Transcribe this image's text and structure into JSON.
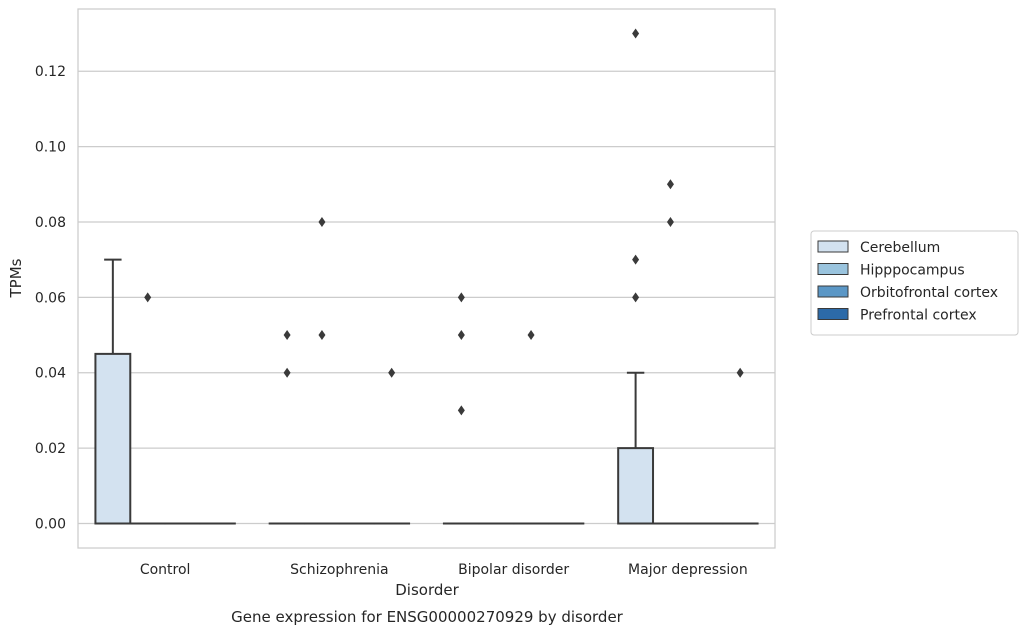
{
  "chart_data": {
    "type": "box",
    "title": "",
    "caption": "Gene expression for ENSG00000270929 by disorder",
    "xlabel": "Disorder",
    "ylabel": "TPMs",
    "ylim": [
      -0.0065,
      0.1365
    ],
    "yticks": [
      "0.00",
      "0.02",
      "0.04",
      "0.06",
      "0.08",
      "0.10",
      "0.12"
    ],
    "ytick_values": [
      0,
      0.02,
      0.04,
      0.06,
      0.08,
      0.1,
      0.12
    ],
    "grid": "horizontal",
    "legend_position": "outside-right",
    "categories": [
      "Control",
      "Schizophrenia",
      "Bipolar disorder",
      "Major depression"
    ],
    "series": [
      {
        "name": "Cerebellum",
        "color": "#d3e2f0",
        "boxes": [
          {
            "q1": 0,
            "median": 0,
            "q3": 0.045,
            "whisker_low": 0,
            "whisker_high": 0.07,
            "outliers": []
          },
          {
            "q1": 0,
            "median": 0,
            "q3": 0,
            "whisker_low": 0,
            "whisker_high": 0,
            "outliers": [
              0.04,
              0.05
            ]
          },
          {
            "q1": 0,
            "median": 0,
            "q3": 0,
            "whisker_low": 0,
            "whisker_high": 0,
            "outliers": [
              0.03,
              0.05,
              0.06
            ]
          },
          {
            "q1": 0,
            "median": 0,
            "q3": 0.02,
            "whisker_low": 0,
            "whisker_high": 0.04,
            "outliers": [
              0.06,
              0.07,
              0.13
            ]
          }
        ]
      },
      {
        "name": "Hipppocampus",
        "color": "#9ac4de",
        "boxes": [
          {
            "q1": 0,
            "median": 0,
            "q3": 0,
            "whisker_low": 0,
            "whisker_high": 0,
            "outliers": [
              0.06
            ]
          },
          {
            "q1": 0,
            "median": 0,
            "q3": 0,
            "whisker_low": 0,
            "whisker_high": 0,
            "outliers": [
              0.05,
              0.08
            ]
          },
          {
            "q1": 0,
            "median": 0,
            "q3": 0,
            "whisker_low": 0,
            "whisker_high": 0,
            "outliers": []
          },
          {
            "q1": 0,
            "median": 0,
            "q3": 0,
            "whisker_low": 0,
            "whisker_high": 0,
            "outliers": [
              0.08,
              0.09
            ]
          }
        ]
      },
      {
        "name": "Orbitofrontal cortex",
        "color": "#5b97c6",
        "boxes": [
          {
            "q1": 0,
            "median": 0,
            "q3": 0,
            "whisker_low": 0,
            "whisker_high": 0,
            "outliers": []
          },
          {
            "q1": 0,
            "median": 0,
            "q3": 0,
            "whisker_low": 0,
            "whisker_high": 0,
            "outliers": []
          },
          {
            "q1": 0,
            "median": 0,
            "q3": 0,
            "whisker_low": 0,
            "whisker_high": 0,
            "outliers": [
              0.05
            ]
          },
          {
            "q1": 0,
            "median": 0,
            "q3": 0,
            "whisker_low": 0,
            "whisker_high": 0,
            "outliers": []
          }
        ]
      },
      {
        "name": "Prefrontal cortex",
        "color": "#2c6aa8",
        "boxes": [
          {
            "q1": 0,
            "median": 0,
            "q3": 0,
            "whisker_low": 0,
            "whisker_high": 0,
            "outliers": []
          },
          {
            "q1": 0,
            "median": 0,
            "q3": 0,
            "whisker_low": 0,
            "whisker_high": 0,
            "outliers": [
              0.04
            ]
          },
          {
            "q1": 0,
            "median": 0,
            "q3": 0,
            "whisker_low": 0,
            "whisker_high": 0,
            "outliers": []
          },
          {
            "q1": 0,
            "median": 0,
            "q3": 0,
            "whisker_low": 0,
            "whisker_high": 0,
            "outliers": [
              0.04
            ]
          }
        ]
      }
    ]
  }
}
